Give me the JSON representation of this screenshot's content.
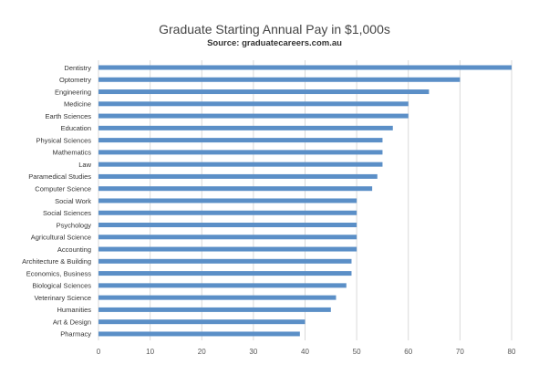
{
  "chart_data": {
    "type": "bar",
    "orientation": "horizontal",
    "title": "Graduate Starting Annual Pay in $1,000s",
    "subtitle": "Source: graduatecareers.com.au",
    "categories": [
      "Dentistry",
      "Optometry",
      "Engineering",
      "Medicine",
      "Earth Sciences",
      "Education",
      "Physical Sciences",
      "Mathematics",
      "Law",
      "Paramedical Studies",
      "Computer Science",
      "Social Work",
      "Social Sciences",
      "Psychology",
      "Agricultural Science",
      "Accounting",
      "Architecture & Building",
      "Economics, Business",
      "Biological Sciences",
      "Veterinary Science",
      "Humanities",
      "Art & Design",
      "Pharmacy"
    ],
    "values": [
      80,
      70,
      64,
      60,
      60,
      57,
      55,
      55,
      55,
      54,
      53,
      50,
      50,
      50,
      50,
      50,
      49,
      49,
      48,
      46,
      45,
      40,
      39
    ],
    "xlim": [
      0,
      80
    ],
    "xticks": [
      "0",
      "10",
      "20",
      "30",
      "40",
      "50",
      "60",
      "70",
      "80"
    ],
    "grid": "vertical",
    "bar_color": "#5b8fc7"
  }
}
